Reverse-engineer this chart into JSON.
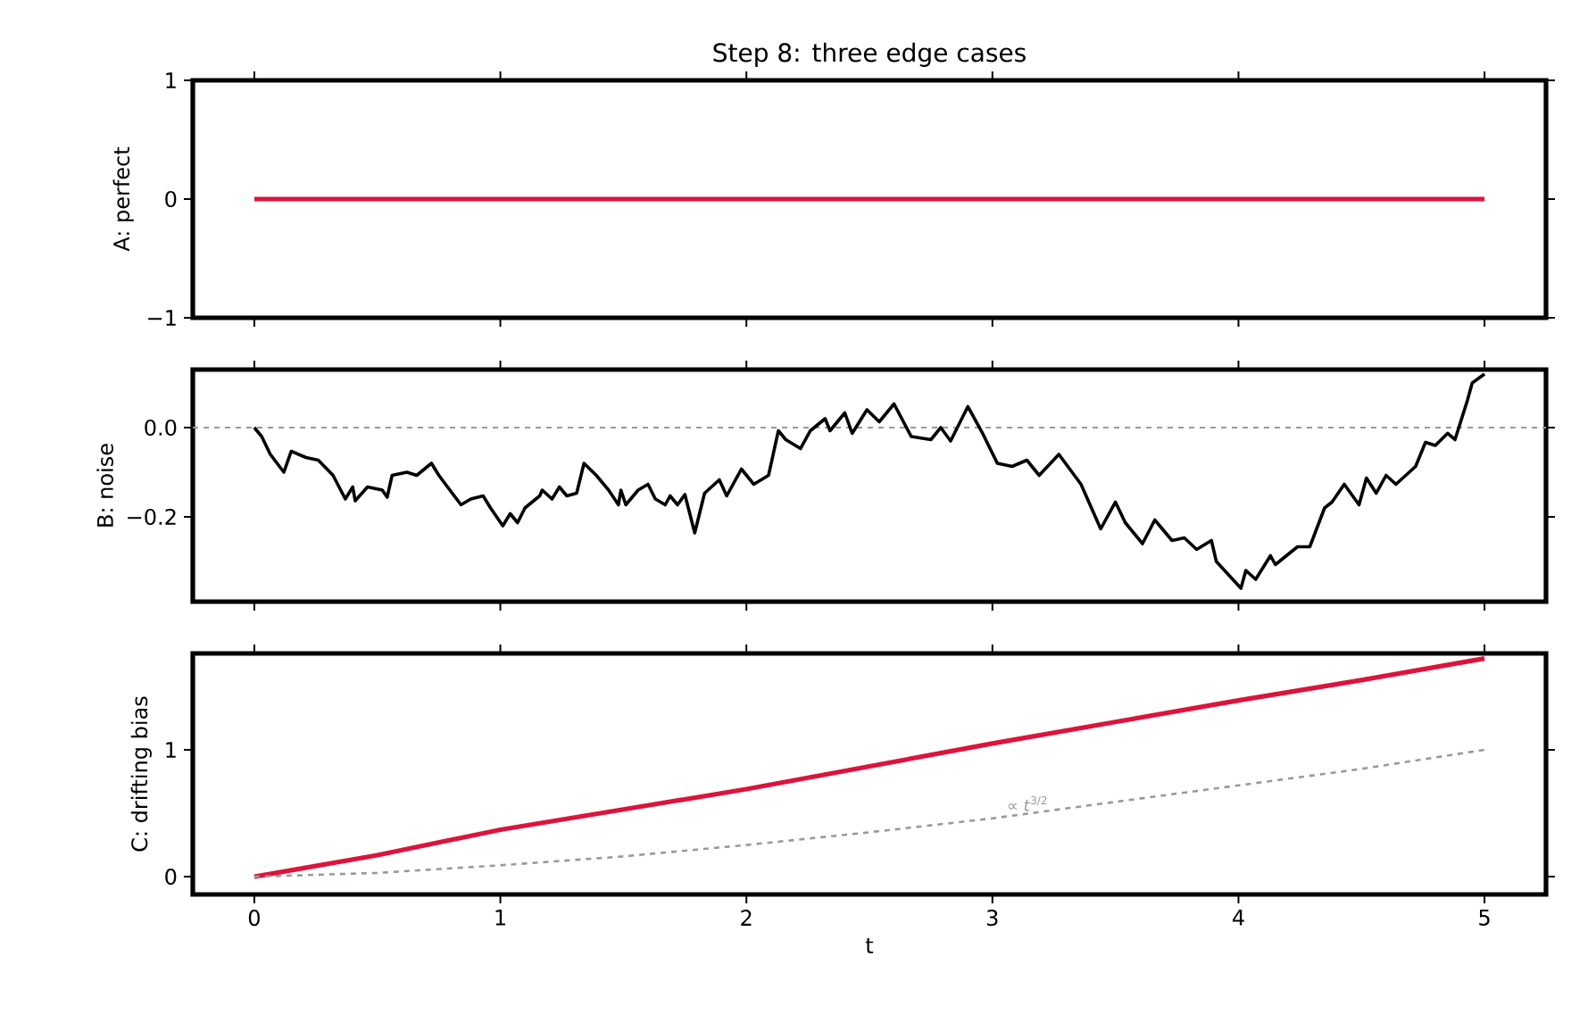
{
  "chart_data": [
    {
      "type": "line",
      "title": "Step 8: three edge cases",
      "ylabel": "A: perfect",
      "xlim": [
        -0.25,
        5.25
      ],
      "ylim": [
        -1,
        1
      ],
      "xticks": [
        0,
        1,
        2,
        3,
        4,
        5
      ],
      "yticks": [
        {
          "value": -1,
          "label": "−1"
        },
        0,
        1
      ],
      "tick_labels": "y",
      "marker": "none",
      "series": [
        {
          "color": "#dc143c",
          "line_style": "solid",
          "x": [
            0,
            5
          ],
          "values": [
            0,
            0
          ]
        }
      ]
    },
    {
      "type": "line",
      "ylabel": "B: noise",
      "xlim": [
        -0.25,
        5.25
      ],
      "ylim": [
        -0.39,
        0.13
      ],
      "xticks": [
        0,
        1,
        2,
        3,
        4,
        5
      ],
      "yticks": [
        {
          "value": -0.2,
          "label": "−0.2"
        },
        {
          "value": 0,
          "label": "0.0"
        }
      ],
      "tick_labels": "y",
      "marker": "none",
      "ref_lines": [
        {
          "axis": "y",
          "value": 0,
          "color": "#999999",
          "line_style": "dashed"
        }
      ],
      "series": [
        {
          "color": "#000000",
          "line_style": "solid",
          "x": [
            0,
            0.03,
            0.065,
            0.12,
            0.15,
            0.21,
            0.26,
            0.32,
            0.37,
            0.4,
            0.41,
            0.46,
            0.52,
            0.54,
            0.56,
            0.62,
            0.66,
            0.72,
            0.75,
            0.84,
            0.88,
            0.93,
            0.96,
            1.01,
            1.04,
            1.07,
            1.1,
            1.16,
            1.17,
            1.21,
            1.24,
            1.27,
            1.31,
            1.34,
            1.39,
            1.44,
            1.48,
            1.49,
            1.51,
            1.56,
            1.6,
            1.63,
            1.67,
            1.69,
            1.72,
            1.75,
            1.79,
            1.83,
            1.89,
            1.92,
            1.98,
            2.03,
            2.09,
            2.13,
            2.16,
            2.22,
            2.26,
            2.32,
            2.34,
            2.4,
            2.43,
            2.49,
            2.54,
            2.6,
            2.67,
            2.75,
            2.79,
            2.83,
            2.9,
            2.96,
            3.02,
            3.08,
            3.14,
            3.19,
            3.27,
            3.36,
            3.44,
            3.5,
            3.54,
            3.61,
            3.66,
            3.73,
            3.78,
            3.83,
            3.89,
            3.91,
            4.01,
            4.03,
            4.07,
            4.13,
            4.15,
            4.24,
            4.29,
            4.35,
            4.38,
            4.43,
            4.49,
            4.52,
            4.56,
            4.6,
            4.64,
            4.72,
            4.76,
            4.8,
            4.85,
            4.88,
            4.93,
            4.95,
            5.0
          ],
          "values": [
            0,
            -0.02,
            -0.06,
            -0.1,
            -0.053,
            -0.067,
            -0.073,
            -0.107,
            -0.16,
            -0.133,
            -0.164,
            -0.133,
            -0.14,
            -0.156,
            -0.107,
            -0.1,
            -0.107,
            -0.08,
            -0.107,
            -0.173,
            -0.16,
            -0.153,
            -0.18,
            -0.22,
            -0.193,
            -0.213,
            -0.18,
            -0.153,
            -0.14,
            -0.16,
            -0.133,
            -0.153,
            -0.147,
            -0.08,
            -0.107,
            -0.14,
            -0.173,
            -0.14,
            -0.173,
            -0.14,
            -0.127,
            -0.16,
            -0.173,
            -0.153,
            -0.173,
            -0.15,
            -0.236,
            -0.147,
            -0.117,
            -0.153,
            -0.093,
            -0.127,
            -0.107,
            -0.007,
            -0.027,
            -0.047,
            -0.007,
            0.02,
            -0.007,
            0.033,
            -0.013,
            0.04,
            0.013,
            0.053,
            -0.02,
            -0.027,
            0,
            -0.03,
            0.047,
            -0.013,
            -0.08,
            -0.087,
            -0.073,
            -0.107,
            -0.06,
            -0.127,
            -0.227,
            -0.167,
            -0.213,
            -0.26,
            -0.207,
            -0.253,
            -0.247,
            -0.273,
            -0.253,
            -0.3,
            -0.36,
            -0.32,
            -0.34,
            -0.287,
            -0.307,
            -0.267,
            -0.267,
            -0.18,
            -0.167,
            -0.127,
            -0.173,
            -0.113,
            -0.147,
            -0.107,
            -0.127,
            -0.087,
            -0.033,
            -0.04,
            -0.013,
            -0.027,
            0.06,
            0.1,
            0.12
          ]
        }
      ]
    },
    {
      "type": "line",
      "ylabel": "C: drifting bias",
      "xlabel": "t",
      "xlim": [
        -0.25,
        5.25
      ],
      "ylim": [
        -0.14,
        1.76
      ],
      "xticks": [
        0,
        1,
        2,
        3,
        4,
        5
      ],
      "yticks": [
        0,
        1
      ],
      "marker": "none",
      "annotations": [
        {
          "text": "∝ *t*$^{3/2}$",
          "x": 3.05,
          "y": 0.5
        }
      ],
      "series": [
        {
          "color": "#dc143c",
          "line_style": "solid",
          "x": [
            0,
            0.5,
            1,
            1.5,
            2,
            2.5,
            3,
            3.5,
            4,
            4.5,
            5
          ],
          "values": [
            0,
            0.17,
            0.37,
            0.53,
            0.69,
            0.87,
            1.05,
            1.22,
            1.39,
            1.55,
            1.72
          ]
        },
        {
          "color": "#999999",
          "line_style": "dashed",
          "x": [
            0,
            0.5,
            1,
            1.5,
            2,
            2.5,
            3,
            3.5,
            4,
            4.5,
            5
          ],
          "values": [
            0,
            0.03,
            0.09,
            0.16,
            0.25,
            0.35,
            0.46,
            0.59,
            0.72,
            0.85,
            1.0
          ]
        }
      ]
    }
  ]
}
